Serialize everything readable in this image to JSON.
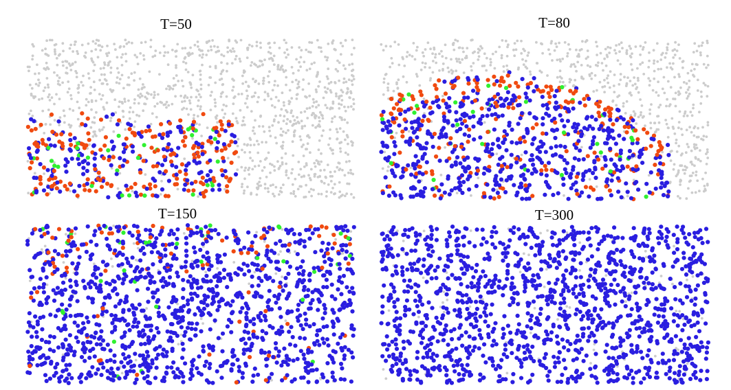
{
  "panels": [
    {
      "title": "T=50"
    },
    {
      "title": "T=80"
    },
    {
      "title": "T=150"
    },
    {
      "title": "T=300"
    }
  ]
}
